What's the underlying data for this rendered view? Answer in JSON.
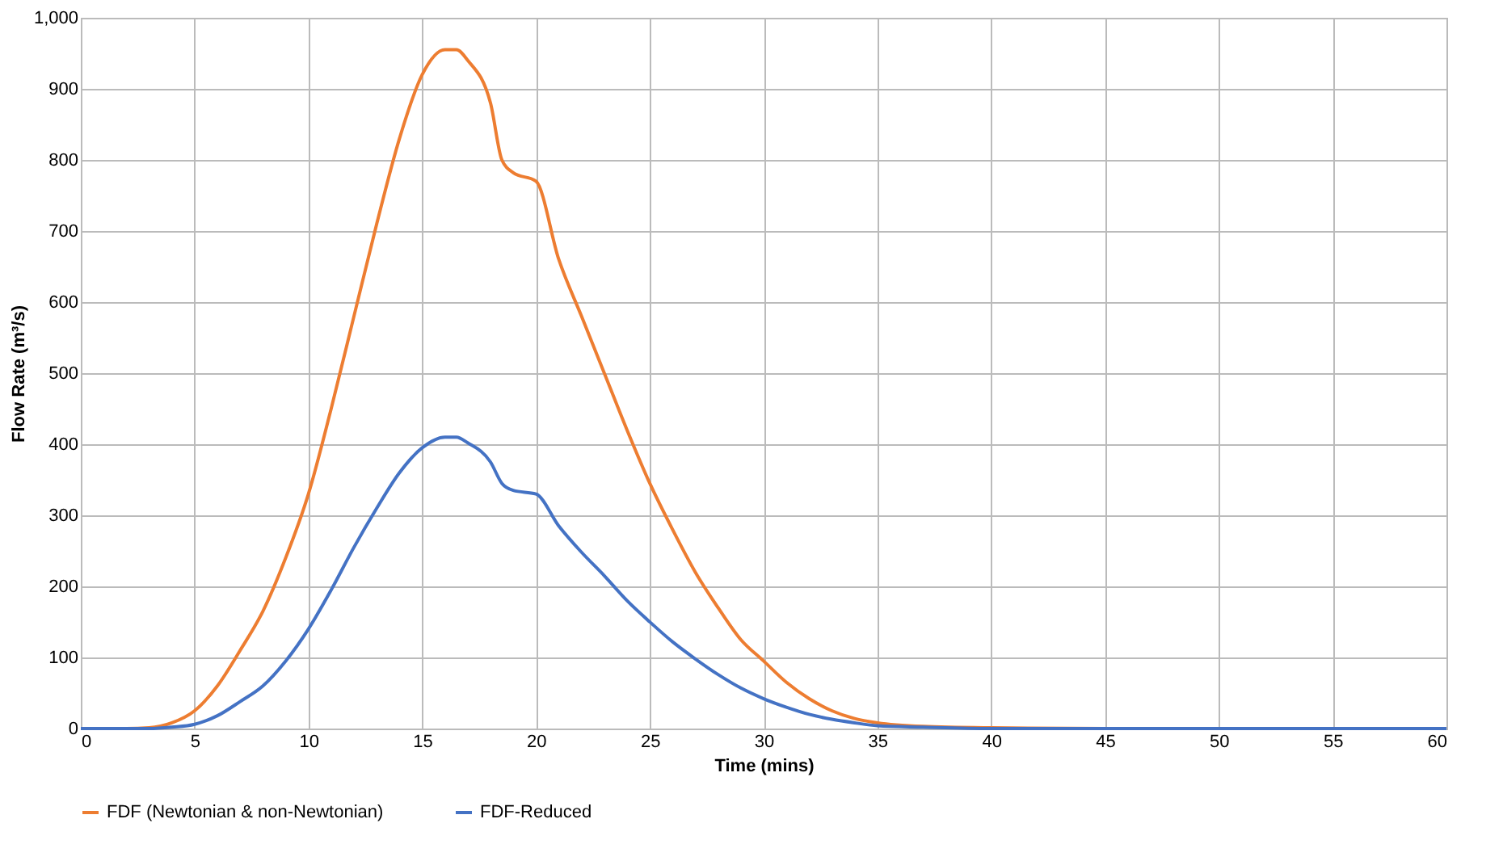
{
  "chart_data": {
    "type": "line",
    "xlabel": "Time (mins)",
    "ylabel": "Flow Rate (m³/s)",
    "xlim": [
      0,
      60
    ],
    "xticks": [
      0,
      5,
      10,
      15,
      20,
      25,
      30,
      35,
      40,
      45,
      50,
      55,
      60
    ],
    "ylim": [
      0,
      1000
    ],
    "yticks": [
      0,
      100,
      200,
      300,
      400,
      500,
      600,
      700,
      800,
      900,
      {
        "value": 1000,
        "label": "1,000"
      }
    ],
    "grid": true,
    "legend": "bottom",
    "marker": "none",
    "line_style": "solid",
    "series": [
      {
        "name": "FDF (Newtonian & non-Newtonian)",
        "color": "#ed7d31",
        "x": [
          0,
          2,
          3,
          4,
          5,
          6,
          7,
          8,
          9,
          10,
          11,
          12,
          13,
          14,
          15,
          16,
          16.5,
          17,
          18,
          18.5,
          19,
          20,
          21,
          22,
          23,
          24,
          25,
          26,
          27,
          28,
          29,
          30,
          31,
          32,
          33,
          34,
          35,
          37,
          40,
          45,
          60
        ],
        "values": [
          0,
          0,
          1,
          8,
          25,
          60,
          110,
          165,
          240,
          330,
          450,
          580,
          710,
          830,
          920,
          955,
          955,
          940,
          880,
          800,
          782,
          770,
          660,
          580,
          500,
          420,
          345,
          280,
          220,
          170,
          125,
          95,
          65,
          42,
          25,
          14,
          8,
          3,
          1,
          0,
          0
        ]
      },
      {
        "name": "FDF-Reduced",
        "color": "#4472c4",
        "x": [
          0,
          3,
          4,
          5,
          6,
          7,
          8,
          9,
          10,
          11,
          12,
          13,
          14,
          15,
          16,
          16.5,
          17,
          18,
          18.5,
          19,
          20,
          21,
          22,
          23,
          24,
          25,
          26,
          27,
          28,
          29,
          30,
          31,
          32,
          33,
          34,
          35,
          37,
          40,
          60
        ],
        "values": [
          0,
          0,
          2,
          6,
          18,
          38,
          60,
          95,
          140,
          195,
          255,
          310,
          360,
          395,
          410,
          410,
          402,
          375,
          345,
          335,
          330,
          285,
          248,
          215,
          180,
          150,
          122,
          98,
          76,
          57,
          42,
          30,
          20,
          13,
          8,
          4,
          2,
          0,
          0
        ]
      }
    ]
  }
}
